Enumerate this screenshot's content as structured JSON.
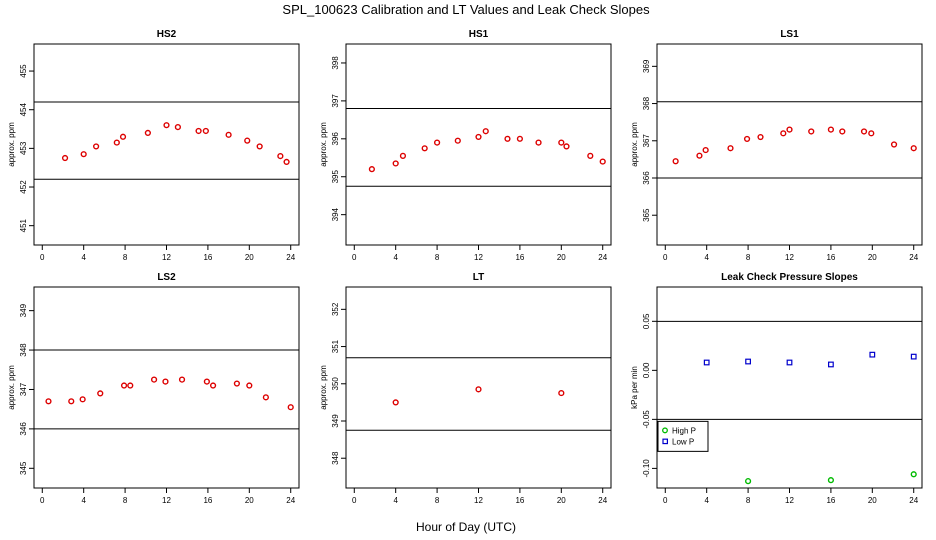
{
  "figure": {
    "title": "SPL_100623  Calibration and LT Values and Leak Check Slopes",
    "xlabel": "Hour of Day (UTC)"
  },
  "chart_data": [
    {
      "type": "scatter",
      "title": "HS2",
      "ylabel": "approx. ppm",
      "xlim": [
        -0.8,
        24.8
      ],
      "ylim": [
        450.5,
        455.7
      ],
      "x_ticks": [
        0,
        4,
        8,
        12,
        16,
        20,
        24
      ],
      "y_ticks": [
        451,
        452,
        453,
        454,
        455
      ],
      "reference_lines": [
        452.2,
        454.2
      ],
      "series": [
        {
          "color": "#dd0000",
          "marker": "circle",
          "points": [
            [
              2.2,
              452.75
            ],
            [
              4.0,
              452.85
            ],
            [
              5.2,
              453.05
            ],
            [
              7.2,
              453.15
            ],
            [
              7.8,
              453.3
            ],
            [
              10.2,
              453.4
            ],
            [
              12.0,
              453.6
            ],
            [
              13.1,
              453.55
            ],
            [
              15.1,
              453.45
            ],
            [
              15.8,
              453.45
            ],
            [
              18.0,
              453.35
            ],
            [
              19.8,
              453.2
            ],
            [
              21.0,
              453.05
            ],
            [
              23.0,
              452.8
            ],
            [
              23.6,
              452.65
            ]
          ]
        }
      ]
    },
    {
      "type": "scatter",
      "title": "HS1",
      "ylabel": "approx. ppm",
      "xlim": [
        -0.8,
        24.8
      ],
      "ylim": [
        393.2,
        398.5
      ],
      "x_ticks": [
        0,
        4,
        8,
        12,
        16,
        20,
        24
      ],
      "y_ticks": [
        394,
        395,
        396,
        397,
        398
      ],
      "reference_lines": [
        394.75,
        396.8
      ],
      "series": [
        {
          "color": "#dd0000",
          "marker": "circle",
          "points": [
            [
              1.7,
              395.2
            ],
            [
              4.0,
              395.35
            ],
            [
              4.7,
              395.55
            ],
            [
              6.8,
              395.75
            ],
            [
              8.0,
              395.9
            ],
            [
              10.0,
              395.95
            ],
            [
              12.0,
              396.05
            ],
            [
              12.7,
              396.2
            ],
            [
              14.8,
              396.0
            ],
            [
              16.0,
              396.0
            ],
            [
              17.8,
              395.9
            ],
            [
              20.0,
              395.9
            ],
            [
              20.5,
              395.8
            ],
            [
              22.8,
              395.55
            ],
            [
              24.0,
              395.4
            ]
          ]
        }
      ]
    },
    {
      "type": "scatter",
      "title": "LS1",
      "ylabel": "approx. ppm",
      "xlim": [
        -0.8,
        24.8
      ],
      "ylim": [
        364.2,
        369.6
      ],
      "x_ticks": [
        0,
        4,
        8,
        12,
        16,
        20,
        24
      ],
      "y_ticks": [
        365,
        366,
        367,
        368,
        369
      ],
      "reference_lines": [
        366.0,
        368.05
      ],
      "series": [
        {
          "color": "#dd0000",
          "marker": "circle",
          "points": [
            [
              1.0,
              366.45
            ],
            [
              3.3,
              366.6
            ],
            [
              3.9,
              366.75
            ],
            [
              6.3,
              366.8
            ],
            [
              7.9,
              367.05
            ],
            [
              9.2,
              367.1
            ],
            [
              11.4,
              367.2
            ],
            [
              12.0,
              367.3
            ],
            [
              14.1,
              367.25
            ],
            [
              16.0,
              367.3
            ],
            [
              17.1,
              367.25
            ],
            [
              19.2,
              367.25
            ],
            [
              19.9,
              367.2
            ],
            [
              22.1,
              366.9
            ],
            [
              24.0,
              366.8
            ]
          ]
        }
      ]
    },
    {
      "type": "scatter",
      "title": "LS2",
      "ylabel": "approx. ppm",
      "xlim": [
        -0.8,
        24.8
      ],
      "ylim": [
        344.5,
        349.6
      ],
      "x_ticks": [
        0,
        4,
        8,
        12,
        16,
        20,
        24
      ],
      "y_ticks": [
        345,
        346,
        347,
        348,
        349
      ],
      "reference_lines": [
        346.0,
        348.0
      ],
      "series": [
        {
          "color": "#dd0000",
          "marker": "circle",
          "points": [
            [
              0.6,
              346.7
            ],
            [
              2.8,
              346.7
            ],
            [
              3.9,
              346.75
            ],
            [
              5.6,
              346.9
            ],
            [
              7.9,
              347.1
            ],
            [
              8.5,
              347.1
            ],
            [
              10.8,
              347.25
            ],
            [
              11.9,
              347.2
            ],
            [
              13.5,
              347.25
            ],
            [
              15.9,
              347.2
            ],
            [
              16.5,
              347.1
            ],
            [
              18.8,
              347.15
            ],
            [
              20.0,
              347.1
            ],
            [
              21.6,
              346.8
            ],
            [
              24.0,
              346.55
            ]
          ]
        }
      ]
    },
    {
      "type": "scatter",
      "title": "LT",
      "ylabel": "approx. ppm",
      "xlim": [
        -0.8,
        24.8
      ],
      "ylim": [
        347.2,
        352.6
      ],
      "x_ticks": [
        0,
        4,
        8,
        12,
        16,
        20,
        24
      ],
      "y_ticks": [
        348,
        349,
        350,
        351,
        352
      ],
      "reference_lines": [
        348.75,
        350.7
      ],
      "series": [
        {
          "color": "#dd0000",
          "marker": "circle",
          "points": [
            [
              4.0,
              349.5
            ],
            [
              12.0,
              349.85
            ],
            [
              20.0,
              349.75
            ]
          ]
        }
      ]
    },
    {
      "type": "scatter",
      "title": "Leak Check Pressure Slopes",
      "ylabel": "kPa per min",
      "xlim": [
        -0.8,
        24.8
      ],
      "ylim": [
        -0.12,
        0.085
      ],
      "x_ticks": [
        0,
        4,
        8,
        12,
        16,
        20,
        24
      ],
      "y_ticks": [
        -0.1,
        -0.05,
        0.0,
        0.05
      ],
      "y_tick_labels": [
        "-0.10",
        "-0.05",
        "0.00",
        "0.05"
      ],
      "reference_lines": [
        -0.05,
        0.05
      ],
      "legend_placement": "bottom-left",
      "series": [
        {
          "name": "High P",
          "color": "#00bb00",
          "marker": "circle",
          "points": [
            [
              8.0,
              -0.113
            ],
            [
              16.0,
              -0.112
            ],
            [
              24.0,
              -0.106
            ]
          ]
        },
        {
          "name": "Low P",
          "color": "#0000cc",
          "marker": "square",
          "points": [
            [
              4.0,
              0.008
            ],
            [
              8.0,
              0.009
            ],
            [
              12.0,
              0.008
            ],
            [
              16.0,
              0.006
            ],
            [
              20.0,
              0.016
            ],
            [
              24.0,
              0.014
            ]
          ]
        }
      ]
    }
  ]
}
